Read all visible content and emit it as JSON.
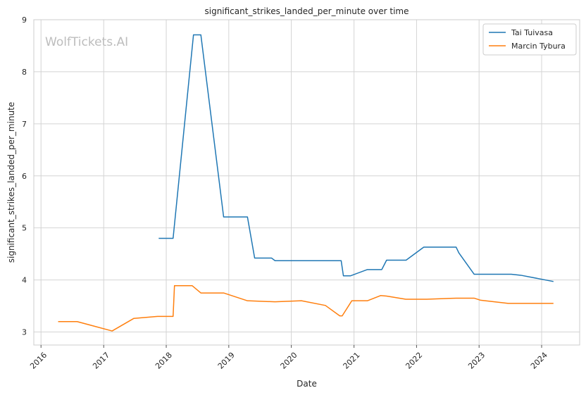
{
  "chart_data": {
    "type": "line",
    "title": "significant_strikes_landed_per_minute over time",
    "xlabel": "Date",
    "ylabel": "significant_strikes_landed_per_minute",
    "watermark": "WolfTickets.AI",
    "xlim": [
      "2015-11-20",
      "2024-08-10"
    ],
    "ylim": [
      2.75,
      9
    ],
    "x_ticks": [
      {
        "date": "2016-01-01",
        "label": "2016"
      },
      {
        "date": "2017-01-01",
        "label": "2017"
      },
      {
        "date": "2018-01-01",
        "label": "2018"
      },
      {
        "date": "2019-01-01",
        "label": "2019"
      },
      {
        "date": "2020-01-01",
        "label": "2020"
      },
      {
        "date": "2021-01-01",
        "label": "2021"
      },
      {
        "date": "2022-01-01",
        "label": "2022"
      },
      {
        "date": "2023-01-01",
        "label": "2023"
      },
      {
        "date": "2024-01-01",
        "label": "2024"
      }
    ],
    "y_ticks": [
      3,
      4,
      5,
      6,
      7,
      8,
      9
    ],
    "grid": true,
    "legend_position": "top-right",
    "series": [
      {
        "name": "Tai Tuivasa",
        "color": "#1f77b4",
        "points": [
          [
            "2017-11-18",
            4.8
          ],
          [
            "2018-02-10",
            4.8
          ],
          [
            "2018-06-09",
            8.71
          ],
          [
            "2018-07-22",
            8.71
          ],
          [
            "2018-12-02",
            5.21
          ],
          [
            "2019-04-20",
            5.21
          ],
          [
            "2019-06-01",
            4.42
          ],
          [
            "2019-09-08",
            4.42
          ],
          [
            "2019-09-28",
            4.37
          ],
          [
            "2020-10-18",
            4.37
          ],
          [
            "2020-10-31",
            4.08
          ],
          [
            "2020-12-12",
            4.08
          ],
          [
            "2021-03-20",
            4.2
          ],
          [
            "2021-06-12",
            4.2
          ],
          [
            "2021-07-10",
            4.38
          ],
          [
            "2021-11-01",
            4.38
          ],
          [
            "2022-02-12",
            4.63
          ],
          [
            "2022-08-20",
            4.63
          ],
          [
            "2022-09-05",
            4.52
          ],
          [
            "2022-12-03",
            4.11
          ],
          [
            "2023-07-08",
            4.11
          ],
          [
            "2023-09-02",
            4.09
          ],
          [
            "2024-03-10",
            3.97
          ]
        ]
      },
      {
        "name": "Marcin Tybura",
        "color": "#ff7f0e",
        "points": [
          [
            "2016-04-10",
            3.2
          ],
          [
            "2016-07-30",
            3.2
          ],
          [
            "2017-02-19",
            3.02
          ],
          [
            "2017-06-25",
            3.26
          ],
          [
            "2017-11-11",
            3.3
          ],
          [
            "2018-02-10",
            3.3
          ],
          [
            "2018-02-18",
            3.89
          ],
          [
            "2018-06-01",
            3.89
          ],
          [
            "2018-07-22",
            3.75
          ],
          [
            "2018-12-02",
            3.75
          ],
          [
            "2019-04-20",
            3.6
          ],
          [
            "2019-09-28",
            3.58
          ],
          [
            "2020-02-29",
            3.6
          ],
          [
            "2020-07-18",
            3.51
          ],
          [
            "2020-10-10",
            3.31
          ],
          [
            "2020-10-24",
            3.31
          ],
          [
            "2020-12-19",
            3.6
          ],
          [
            "2021-03-20",
            3.6
          ],
          [
            "2021-06-05",
            3.7
          ],
          [
            "2021-07-10",
            3.69
          ],
          [
            "2021-10-30",
            3.63
          ],
          [
            "2022-03-01",
            3.63
          ],
          [
            "2022-08-20",
            3.65
          ],
          [
            "2022-12-03",
            3.65
          ],
          [
            "2023-01-10",
            3.61
          ],
          [
            "2023-06-20",
            3.55
          ],
          [
            "2024-03-10",
            3.55
          ]
        ]
      }
    ]
  }
}
